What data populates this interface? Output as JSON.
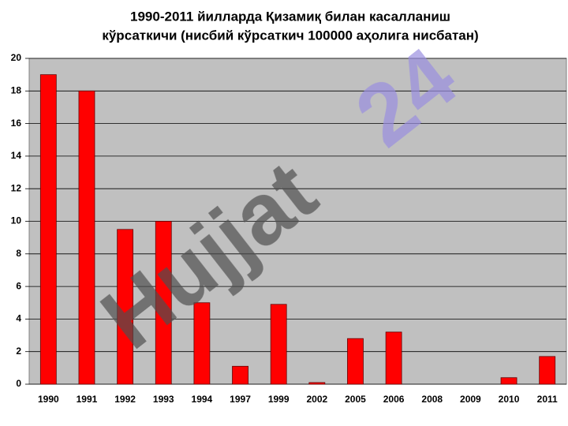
{
  "chart_data": {
    "type": "bar",
    "title": [
      "1990-2011 йилларда Қизамиқ билан касалланиш",
      "кўрсаткичи (нисбий кўрсаткич 100000 аҳолига нисбатан)"
    ],
    "categories": [
      "1990",
      "1991",
      "1992",
      "1993",
      "1994",
      "1997",
      "1999",
      "2002",
      "2005",
      "2006",
      "2008",
      "2009",
      "2010",
      "2011"
    ],
    "values": [
      19,
      18,
      9.5,
      10,
      5,
      1.1,
      4.9,
      0.1,
      2.8,
      3.2,
      0,
      0,
      0.4,
      1.7
    ],
    "color": "#ff0000",
    "ylim": [
      0,
      20
    ],
    "yticks": [
      0,
      2,
      4,
      6,
      8,
      10,
      12,
      14,
      16,
      18,
      20
    ],
    "grid": true,
    "watermark": [
      "Hujjat",
      "24"
    ]
  }
}
